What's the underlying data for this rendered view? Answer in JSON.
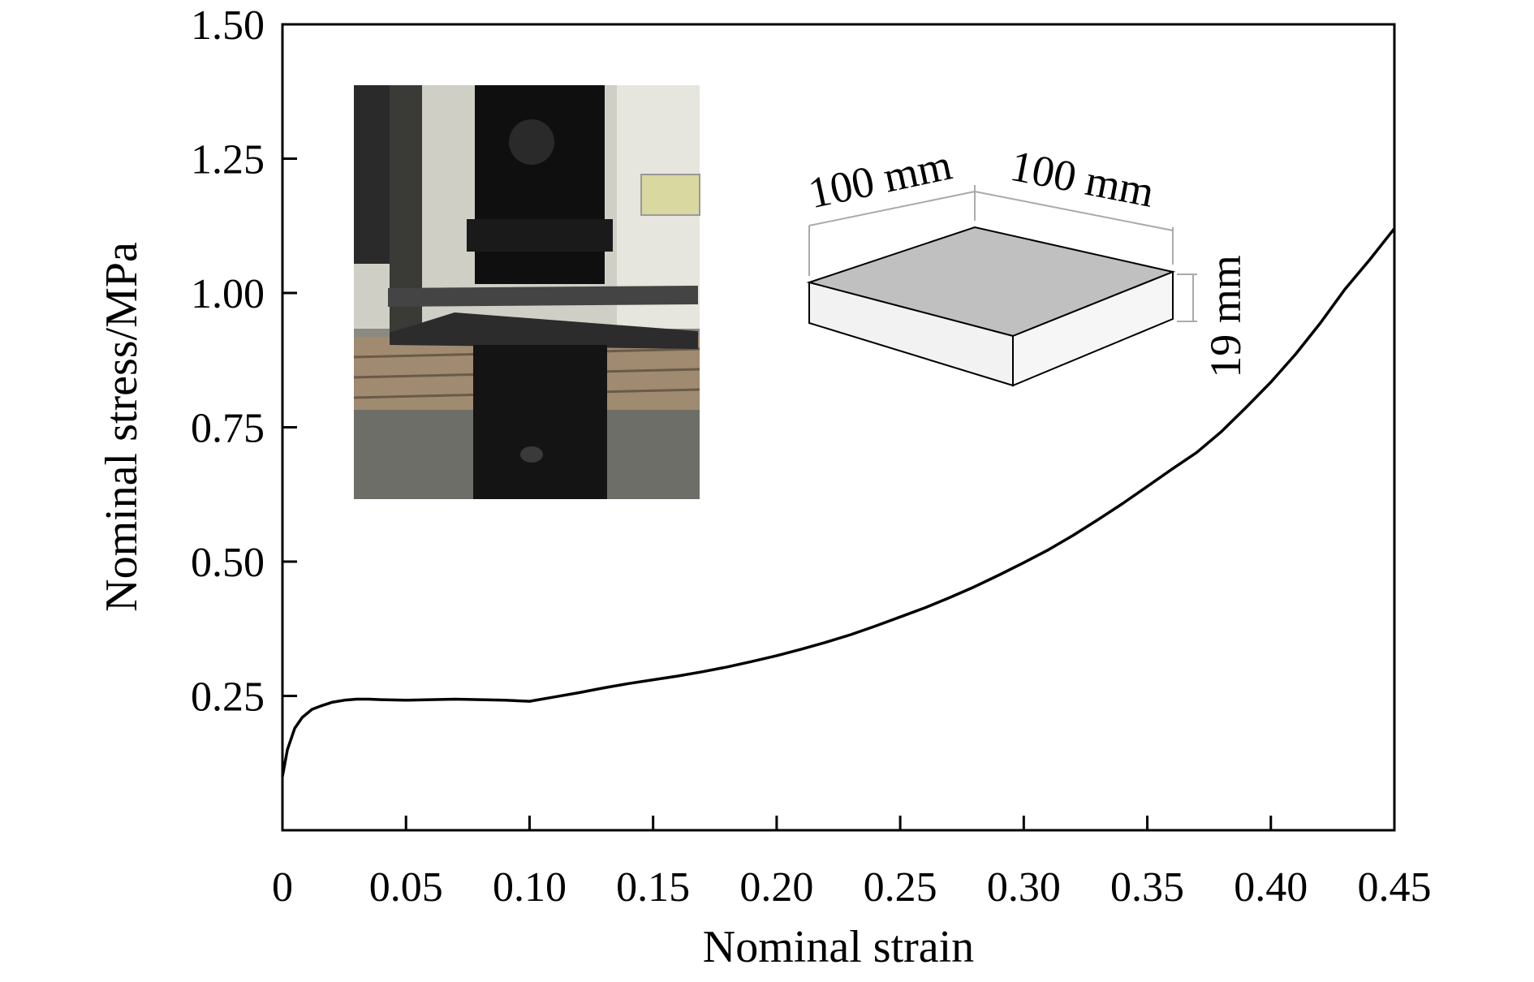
{
  "chart_data": {
    "type": "line",
    "title": "",
    "xlabel": "Nominal strain",
    "ylabel": "Nominal stress/MPa",
    "xlim": [
      0,
      0.45
    ],
    "ylim": [
      0,
      1.5
    ],
    "x_ticks": [
      0,
      0.05,
      0.1,
      0.15,
      0.2,
      0.25,
      0.3,
      0.35,
      0.4,
      0.45
    ],
    "x_tick_labels": [
      "0",
      "0.05",
      "0.10",
      "0.15",
      "0.20",
      "0.25",
      "0.30",
      "0.35",
      "0.40",
      "0.45"
    ],
    "y_ticks": [
      0.25,
      0.5,
      0.75,
      1.0,
      1.25,
      1.5
    ],
    "y_tick_labels": [
      "0.25",
      "0.50",
      "0.75",
      "1.00",
      "1.25",
      "1.50"
    ],
    "grid": false,
    "legend": "none",
    "series": [
      {
        "color": "#000000",
        "x": [
          0,
          0.002,
          0.005,
          0.008,
          0.012,
          0.016,
          0.02,
          0.025,
          0.03,
          0.035,
          0.04,
          0.05,
          0.06,
          0.07,
          0.08,
          0.09,
          0.1,
          0.11,
          0.12,
          0.13,
          0.14,
          0.15,
          0.16,
          0.17,
          0.18,
          0.19,
          0.2,
          0.21,
          0.22,
          0.23,
          0.24,
          0.25,
          0.26,
          0.27,
          0.28,
          0.29,
          0.3,
          0.31,
          0.32,
          0.33,
          0.34,
          0.35,
          0.36,
          0.37,
          0.38,
          0.39,
          0.4,
          0.41,
          0.42,
          0.43,
          0.44,
          0.45
        ],
        "y": [
          0.1,
          0.15,
          0.19,
          0.21,
          0.225,
          0.232,
          0.238,
          0.242,
          0.244,
          0.244,
          0.243,
          0.242,
          0.243,
          0.244,
          0.243,
          0.242,
          0.24,
          0.248,
          0.256,
          0.265,
          0.273,
          0.28,
          0.287,
          0.295,
          0.304,
          0.314,
          0.325,
          0.337,
          0.35,
          0.364,
          0.38,
          0.397,
          0.414,
          0.433,
          0.453,
          0.475,
          0.498,
          0.522,
          0.549,
          0.578,
          0.608,
          0.64,
          0.672,
          0.703,
          0.742,
          0.787,
          0.834,
          0.886,
          0.944,
          1.007,
          1.062,
          1.12
        ]
      }
    ],
    "annotations": {
      "sample_length": "100 mm",
      "sample_width": "100 mm",
      "sample_thickness": "19 mm"
    }
  },
  "insets": {
    "photo_icon": "compression-test-photo",
    "specimen_icon": "specimen-block-3d",
    "block_top_color": "#c0c0c0",
    "block_side_color": "#f2f2f2"
  }
}
